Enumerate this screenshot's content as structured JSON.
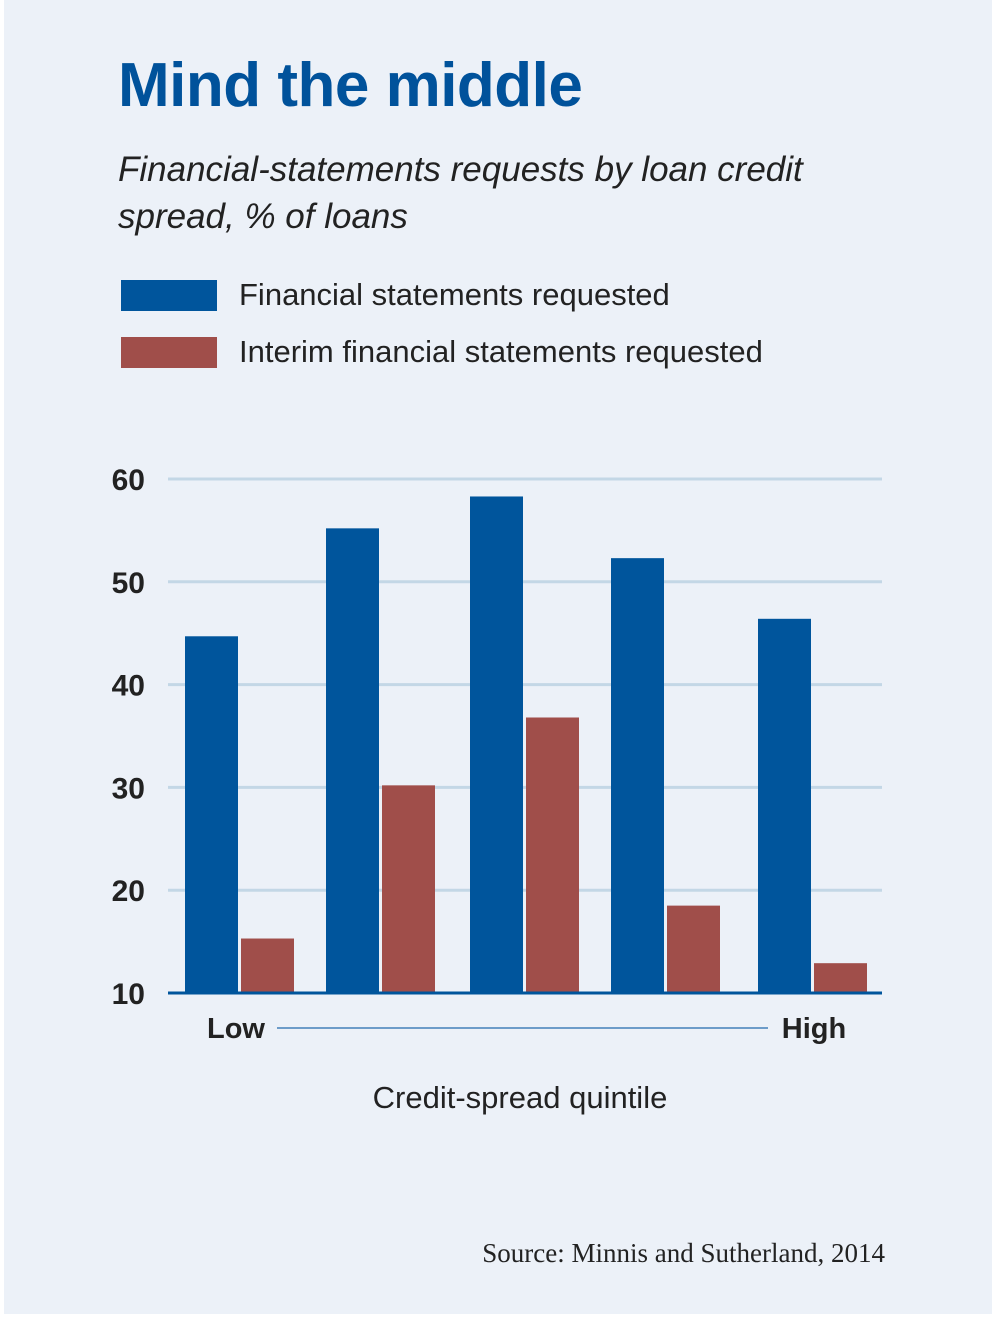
{
  "colors": {
    "blue": "#00559c",
    "red": "#a04e4a",
    "grid": "#c3d7e6",
    "axis": "#00559c"
  },
  "chart_data": {
    "type": "bar",
    "title": "Mind the middle",
    "subtitle": "Financial-statements requests by loan credit spread, % of loans",
    "xlabel": "Credit-spread quintile",
    "x_ends": {
      "low": "Low",
      "high": "High"
    },
    "ylabel": "",
    "ylim": [
      10,
      60
    ],
    "yticks": [
      60,
      50,
      40,
      30,
      20,
      10
    ],
    "grid": true,
    "legend_placement": "top-left",
    "categories": [
      "1",
      "2",
      "3",
      "4",
      "5"
    ],
    "series": [
      {
        "name": "Financial statements requested",
        "values": [
          44.7,
          55.2,
          58.3,
          52.3,
          46.4
        ]
      },
      {
        "name": "Interim financial statements requested",
        "values": [
          15.3,
          30.2,
          36.8,
          18.5,
          12.9
        ]
      }
    ]
  },
  "source": "Source: Minnis and Sutherland, 2014"
}
